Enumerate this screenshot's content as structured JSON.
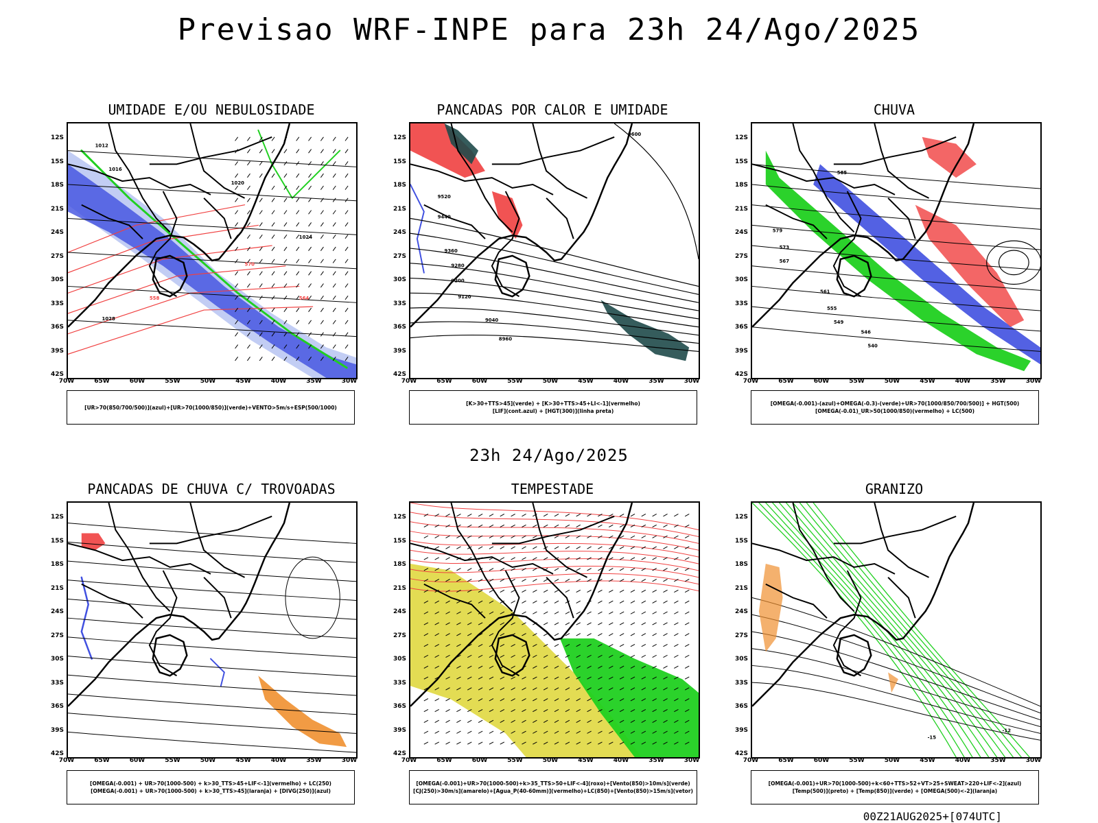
{
  "main_title": "Previsao WRF-INPE  para 23h 24/Ago/2025",
  "mid_title": "23h 24/Ago/2025",
  "footer": "00Z21AUG2025+[074UTC]",
  "colors": {
    "blue": "#4050e0",
    "green": "#20d020",
    "red": "#f04040",
    "orange": "#f09030",
    "yellow": "#e0d840",
    "darkteal": "#1f4a4a",
    "lightblue": "#a8b8f0"
  },
  "latitude_labels": [
    "12S",
    "15S",
    "18S",
    "21S",
    "24S",
    "27S",
    "30S",
    "33S",
    "36S",
    "39S",
    "42S"
  ],
  "longitude_labels": [
    "70W",
    "65W",
    "60W",
    "55W",
    "50W",
    "45W",
    "40W",
    "35W",
    "30W"
  ],
  "panels": [
    {
      "title": "UMIDADE E/OU NEBULOSIDADE",
      "legend": [
        "[UR>70(850/700/500)](azul)+[UR>70(1000/850)](verde)+VENTO>5m/s+ESP(500/1000)"
      ],
      "contour_labels": [
        "1012",
        "1016",
        "1020",
        "1024",
        "1028",
        "570",
        "564",
        "558"
      ]
    },
    {
      "title": "PANCADAS POR CALOR E UMIDADE",
      "legend": [
        "[K>30+TTS>45](verde) + [K>30+TTS>45+LI<-1](vermelho)",
        "[LIF](cont.azul) + [HGT(300)](linha preta)"
      ],
      "contour_labels": [
        "9600",
        "9520",
        "9440",
        "9360",
        "9280",
        "9200",
        "9120",
        "9040",
        "8960"
      ]
    },
    {
      "title": "CHUVA",
      "legend": [
        "[OMEGA(-0.001)-(azul)+OMEGA(-0.3)-(verde)+UR>70(1000/850/700/500)] + HGT(500)",
        "[OMEGA(-0.01)_UR>50(1000/850)(vermelho) + LC(500)"
      ],
      "contour_labels": [
        "585",
        "579",
        "573",
        "567",
        "561",
        "555",
        "549",
        "546",
        "540"
      ]
    },
    {
      "title": "PANCADAS DE CHUVA C/ TROVOADAS",
      "legend": [
        "[OMEGA(-0.001) + UR>70(1000-500) + k>30_TTS>45+LIF<-1](vermelho) + LC(250)",
        "[OMEGA(-0.001) + UR>70(1000-500) + k>30_TTS>45](laranja) + [DIVG(250)](azul)"
      ],
      "contour_labels": []
    },
    {
      "title": "TEMPESTADE",
      "legend": [
        "[OMEGA(-0.001)+UR>70(1000-500)+k>35_TTS>50+LIF<-4](roxo)+[Vento(850)>10m/s](verde)",
        "[CJ(250)>30m/s](amarelo)+[Agua_P(40-60mm)](vermelho)+LC(850)+[Vento(850)>15m/s](vetor)"
      ],
      "contour_labels": []
    },
    {
      "title": "GRANIZO",
      "legend": [
        "[OMEGA(-0.001)+UR>70(1000-500)+k<60+TTS>52+VT>25+SWEAT>220+LIF<-2](azul)",
        "[Temp(500)](preto) + [Temp(850)](verde) + [OMEGA(500)<-2](laranja)"
      ],
      "contour_labels": [
        "-15",
        "-12"
      ]
    }
  ]
}
